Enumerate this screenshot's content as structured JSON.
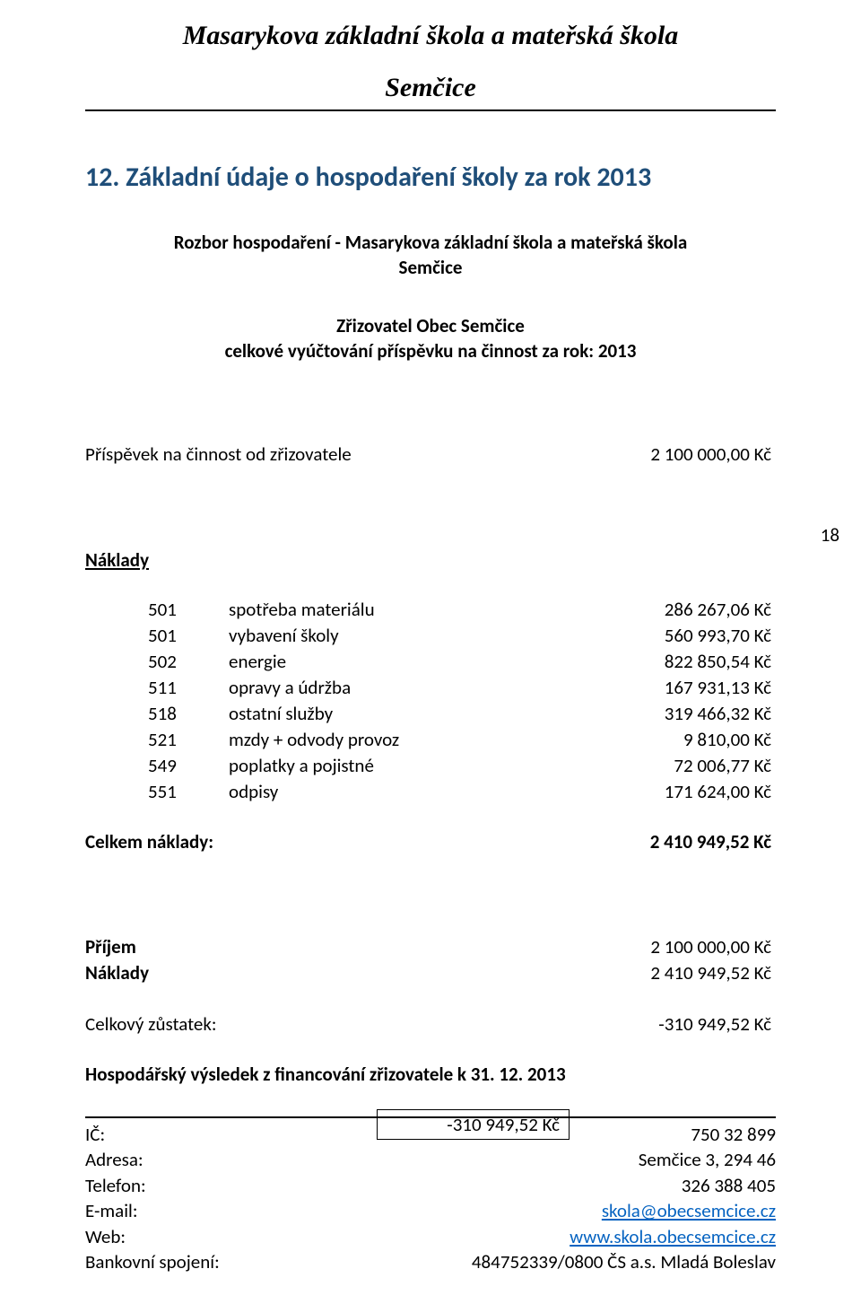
{
  "header": {
    "title_line1": "Masarykova základní škola a mateřská škola",
    "title_line2": "Semčice"
  },
  "section_heading": "12.  Základní údaje o hospodaření školy za rok 2013",
  "subtitle_line1": "Rozbor hospodaření - Masarykova základní škola a mateřská škola",
  "subtitle_line2": "Semčice",
  "zrizovatel_line1": "Zřizovatel Obec Semčice",
  "zrizovatel_line2": "celkové vyúčtování příspěvku na činnost za rok: 2013",
  "prispevek": {
    "label": "Příspěvek na činnost od zřizovatele",
    "value": "2 100 000,00 Kč"
  },
  "naklady_heading": "Náklady",
  "costs": [
    {
      "code": "501",
      "desc": "spotřeba materiálu",
      "amount": "286 267,06 Kč"
    },
    {
      "code": "501",
      "desc": "vybavení školy",
      "amount": "560 993,70 Kč"
    },
    {
      "code": "502",
      "desc": "energie",
      "amount": "822 850,54 Kč"
    },
    {
      "code": "511",
      "desc": "opravy a údržba",
      "amount": "167 931,13 Kč"
    },
    {
      "code": "518",
      "desc": "ostatní služby",
      "amount": "319 466,32 Kč"
    },
    {
      "code": "521",
      "desc": "mzdy + odvody provoz",
      "amount": "9 810,00 Kč"
    },
    {
      "code": "549",
      "desc": "poplatky a pojistné",
      "amount": "72 006,77 Kč"
    },
    {
      "code": "551",
      "desc": "odpisy",
      "amount": "171 624,00 Kč"
    }
  ],
  "page_number": "18",
  "celkem_naklady": {
    "label": "Celkem náklady:",
    "value": "2 410 949,52 Kč"
  },
  "summary": {
    "prijem_label": "Příjem",
    "prijem_value": "2 100 000,00 Kč",
    "naklady_label": "Náklady",
    "naklady_value": "2 410 949,52 Kč",
    "zustatek_label": "Celkový zůstatek:",
    "zustatek_value": "-310 949,52 Kč"
  },
  "hv_line": "Hospodářský výsledek z financování zřizovatele k 31. 12. 2013",
  "hv_value": "-310 949,52 Kč",
  "footer": {
    "rows": [
      {
        "label": "IČ:",
        "value": "750 32 899",
        "link": false
      },
      {
        "label": "Adresa:",
        "value": "Semčice 3, 294 46",
        "link": false
      },
      {
        "label": "Telefon:",
        "value": "326 388 405",
        "link": false
      },
      {
        "label": "E-mail:",
        "value": "skola@obecsemcice.cz",
        "link": true
      },
      {
        "label": "Web:",
        "value": "www.skola.obecsemcice.cz",
        "link": true
      },
      {
        "label": "Bankovní spojení:",
        "value": "484752339/0800 ČS a.s. Mladá Boleslav",
        "link": false
      }
    ]
  },
  "colors": {
    "heading": "#1f4e79",
    "text": "#000000",
    "link": "#0563c1",
    "background": "#ffffff"
  },
  "typography": {
    "body_font": "Calibri",
    "header_font": "Bookman Old Style italic",
    "body_size_pt": 16,
    "heading_size_pt": 23,
    "header_title_size_pt": 23
  }
}
